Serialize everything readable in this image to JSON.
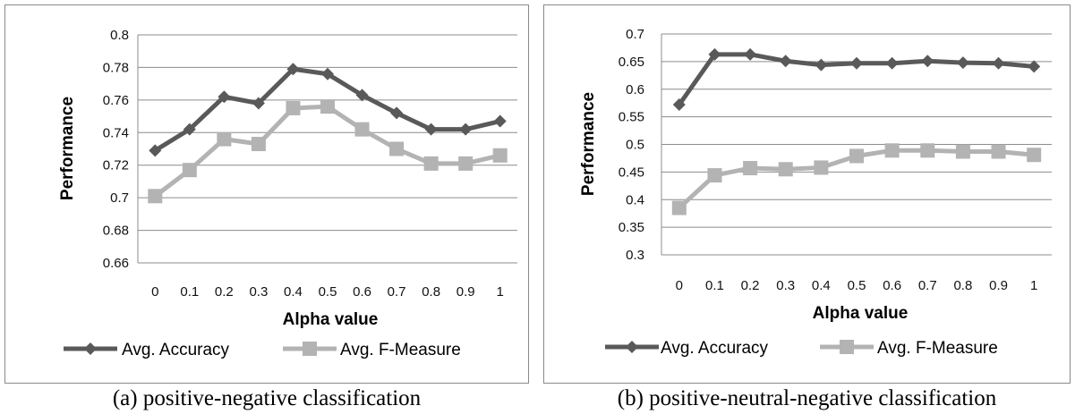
{
  "chart_data": [
    {
      "type": "line",
      "caption": "(a) positive-negative classification",
      "xlabel": "Alpha value",
      "ylabel": "Performance",
      "x": [
        "0",
        "0.1",
        "0.2",
        "0.3",
        "0.4",
        "0.5",
        "0.6",
        "0.7",
        "0.8",
        "0.9",
        "1"
      ],
      "yticks": [
        "0.66",
        "0.68",
        "0.7",
        "0.72",
        "0.74",
        "0.76",
        "0.78",
        "0.8"
      ],
      "ylim": [
        0.66,
        0.8
      ],
      "grid": true,
      "legend_position": "bottom",
      "series": [
        {
          "name": "Avg. Accuracy",
          "marker": "diamond",
          "color": "#595959",
          "values": [
            0.729,
            0.742,
            0.762,
            0.758,
            0.779,
            0.776,
            0.763,
            0.752,
            0.742,
            0.742,
            0.747
          ]
        },
        {
          "name": "Avg. F-Measure",
          "marker": "square",
          "color": "#b3b3b3",
          "values": [
            0.701,
            0.717,
            0.736,
            0.733,
            0.755,
            0.756,
            0.742,
            0.73,
            0.721,
            0.721,
            0.726
          ]
        }
      ]
    },
    {
      "type": "line",
      "caption": "(b) positive-neutral-negative classification",
      "xlabel": "Alpha value",
      "ylabel": "Performance",
      "x": [
        "0",
        "0.1",
        "0.2",
        "0.3",
        "0.4",
        "0.5",
        "0.6",
        "0.7",
        "0.8",
        "0.9",
        "1"
      ],
      "yticks": [
        "0.3",
        "0.35",
        "0.4",
        "0.45",
        "0.5",
        "0.55",
        "0.6",
        "0.65",
        "0.7"
      ],
      "ylim": [
        0.3,
        0.7
      ],
      "grid": true,
      "legend_position": "bottom",
      "series": [
        {
          "name": "Avg. Accuracy",
          "marker": "diamond",
          "color": "#595959",
          "values": [
            0.572,
            0.663,
            0.663,
            0.651,
            0.644,
            0.647,
            0.647,
            0.651,
            0.648,
            0.647,
            0.641
          ]
        },
        {
          "name": "Avg. F-Measure",
          "marker": "square",
          "color": "#b3b3b3",
          "values": [
            0.385,
            0.444,
            0.457,
            0.455,
            0.458,
            0.479,
            0.489,
            0.489,
            0.487,
            0.487,
            0.481
          ]
        }
      ]
    }
  ]
}
